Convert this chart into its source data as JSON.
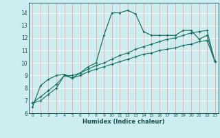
{
  "xlabel": "Humidex (Indice chaleur)",
  "bg_color": "#cceef0",
  "grid_h_color": "#ffffff",
  "grid_v_color": "#ffaaaa",
  "line_color": "#1a7060",
  "xlim": [
    -0.5,
    23.5
  ],
  "ylim": [
    6,
    14.8
  ],
  "yticks": [
    6,
    7,
    8,
    9,
    10,
    11,
    12,
    13,
    14
  ],
  "xticks": [
    0,
    1,
    2,
    3,
    4,
    5,
    6,
    7,
    8,
    9,
    10,
    11,
    12,
    13,
    14,
    15,
    16,
    17,
    18,
    19,
    20,
    21,
    22,
    23
  ],
  "series1_x": [
    0,
    1,
    2,
    3,
    4,
    5,
    6,
    7,
    8,
    9,
    10,
    11,
    12,
    13,
    14,
    15,
    16,
    17,
    18,
    19,
    20,
    21,
    22,
    23
  ],
  "series1_y": [
    6.5,
    8.2,
    8.7,
    9.0,
    9.1,
    8.8,
    9.2,
    9.7,
    10.0,
    12.2,
    14.0,
    14.0,
    14.2,
    13.9,
    12.5,
    12.2,
    12.2,
    12.2,
    12.2,
    12.6,
    12.6,
    11.9,
    12.2,
    10.1
  ],
  "series2_x": [
    0,
    1,
    2,
    3,
    4,
    5,
    6,
    7,
    8,
    9,
    10,
    11,
    12,
    13,
    14,
    15,
    16,
    17,
    18,
    19,
    20,
    21,
    22,
    23
  ],
  "series2_y": [
    6.8,
    7.3,
    7.8,
    8.3,
    9.0,
    9.0,
    9.2,
    9.5,
    9.8,
    10.0,
    10.3,
    10.6,
    10.8,
    11.1,
    11.3,
    11.5,
    11.7,
    11.9,
    12.0,
    12.2,
    12.4,
    12.5,
    12.6,
    10.1
  ],
  "series3_x": [
    0,
    1,
    2,
    3,
    4,
    5,
    6,
    7,
    8,
    9,
    10,
    11,
    12,
    13,
    14,
    15,
    16,
    17,
    18,
    19,
    20,
    21,
    22,
    23
  ],
  "series3_y": [
    6.8,
    7.0,
    7.5,
    8.0,
    9.0,
    8.8,
    9.0,
    9.3,
    9.5,
    9.7,
    9.9,
    10.1,
    10.3,
    10.5,
    10.7,
    10.8,
    11.0,
    11.1,
    11.2,
    11.4,
    11.5,
    11.7,
    11.8,
    10.1
  ]
}
